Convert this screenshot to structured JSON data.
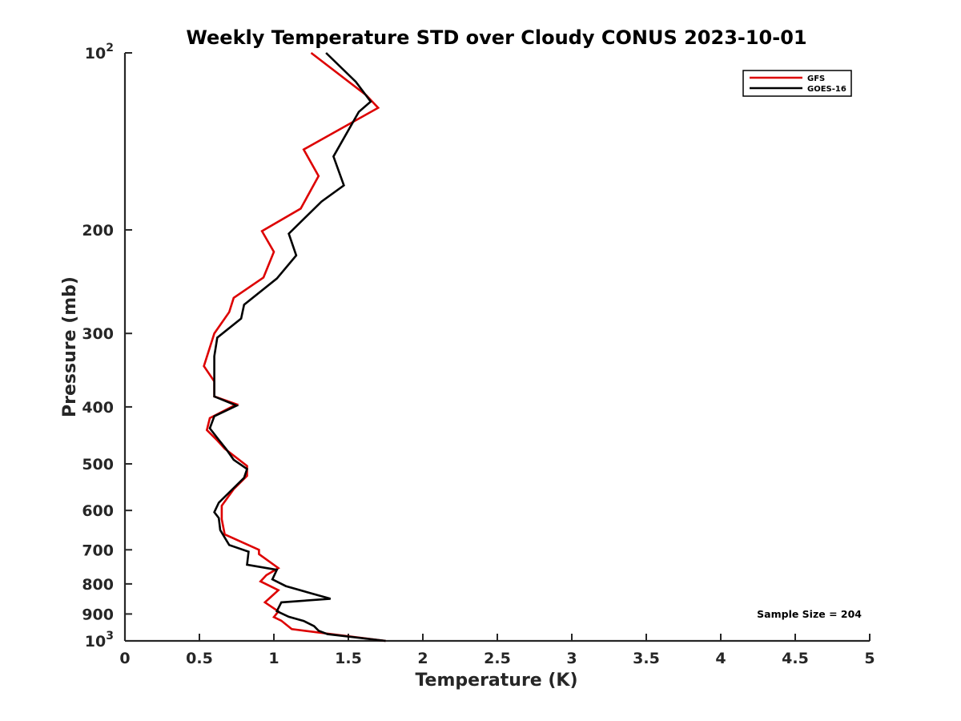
{
  "chart_data": {
    "type": "line",
    "title": "Weekly Temperature STD over Cloudy CONUS 2023-10-01",
    "xlabel": "Temperature (K)",
    "ylabel": "Pressure (mb)",
    "xlim": [
      0,
      5
    ],
    "ylim": [
      100,
      1000
    ],
    "y_scale": "log",
    "y_reversed": true,
    "grid": false,
    "legend_position": "top-right",
    "x_ticks": [
      "0",
      "0.5",
      "1",
      "1.5",
      "2",
      "2.5",
      "3",
      "3.5",
      "4",
      "4.5",
      "5"
    ],
    "y_ticks": [
      {
        "value": 100,
        "label": "10",
        "sup": "2"
      },
      {
        "value": 200,
        "label": "200"
      },
      {
        "value": 300,
        "label": "300"
      },
      {
        "value": 400,
        "label": "400"
      },
      {
        "value": 500,
        "label": "500"
      },
      {
        "value": 600,
        "label": "600"
      },
      {
        "value": 700,
        "label": "700"
      },
      {
        "value": 800,
        "label": "800"
      },
      {
        "value": 900,
        "label": "900"
      },
      {
        "value": 1000,
        "label": "10",
        "sup": "3"
      }
    ],
    "series": [
      {
        "name": "GFS",
        "color": "#dd0000",
        "x": [
          1.25,
          1.62,
          1.7,
          1.2,
          1.3,
          1.18,
          0.92,
          1.0,
          0.93,
          0.73,
          0.7,
          0.6,
          0.53,
          0.6,
          0.6,
          0.75,
          0.57,
          0.55,
          0.62,
          0.67,
          0.82,
          0.82,
          0.73,
          0.65,
          0.65,
          0.67,
          0.9,
          0.9,
          1.03,
          0.95,
          0.91,
          1.03,
          0.94,
          1.03,
          1.0,
          1.05,
          1.12,
          1.75
        ],
        "y": [
          100,
          118,
          124,
          146,
          162,
          184,
          201,
          218,
          241,
          261,
          276,
          300,
          341,
          362,
          384,
          396,
          418,
          438,
          456,
          471,
          504,
          524,
          552,
          589,
          621,
          659,
          700,
          712,
          752,
          773,
          792,
          820,
          860,
          891,
          911,
          924,
          955,
          1000
        ]
      },
      {
        "name": "GOES-16",
        "color": "#000000",
        "x": [
          1.35,
          1.55,
          1.65,
          1.57,
          1.4,
          1.47,
          1.32,
          1.1,
          1.15,
          1.02,
          0.8,
          0.78,
          0.62,
          0.6,
          0.6,
          0.6,
          0.75,
          0.6,
          0.57,
          0.63,
          0.68,
          0.73,
          0.82,
          0.8,
          0.63,
          0.6,
          0.63,
          0.64,
          0.7,
          0.83,
          0.82,
          1.02,
          0.99,
          1.08,
          1.25,
          1.38,
          1.05,
          1.02,
          1.1,
          1.2,
          1.27,
          1.3,
          1.36,
          1.75
        ],
        "y": [
          100,
          112,
          121,
          126,
          150,
          168,
          179,
          203,
          221,
          242,
          268,
          283,
          305,
          328,
          360,
          384,
          398,
          415,
          435,
          455,
          472,
          492,
          510,
          528,
          582,
          604,
          618,
          648,
          687,
          705,
          742,
          757,
          786,
          807,
          830,
          848,
          860,
          890,
          910,
          925,
          944,
          961,
          974,
          1000
        ]
      }
    ],
    "annotation": "Sample Size = 204"
  }
}
